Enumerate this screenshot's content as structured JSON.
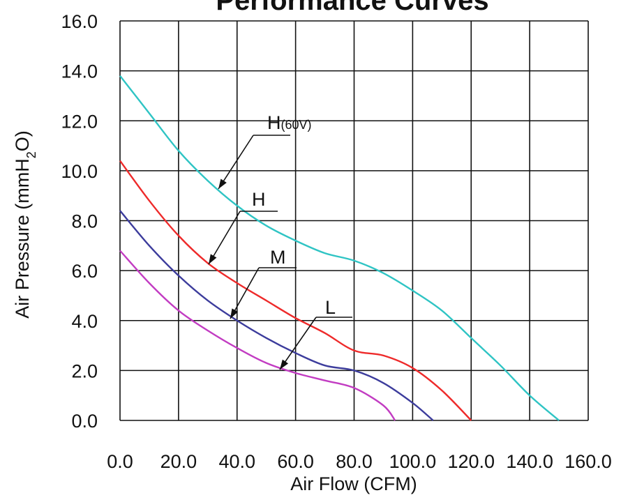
{
  "chart_data": {
    "type": "line",
    "title": "Performance Curves",
    "xlabel": "Air Flow (CFM)",
    "ylabel": "Air Pressure (mmH2O)",
    "xlim": [
      0,
      160
    ],
    "ylim": [
      0,
      16
    ],
    "x_ticks": [
      "0.0",
      "20.0",
      "40.0",
      "60.0",
      "80.0",
      "100.0",
      "120.0",
      "140.0",
      "160.0"
    ],
    "y_ticks": [
      "0.0",
      "2.0",
      "4.0",
      "6.0",
      "8.0",
      "10.0",
      "12.0",
      "14.0",
      "16.0"
    ],
    "grid": true,
    "legend": "none",
    "series": [
      {
        "name": "H(60V)",
        "callout": {
          "main": "H",
          "sub": "(60V)"
        },
        "color": "#2fc4c4",
        "points": [
          [
            0,
            13.8
          ],
          [
            10,
            12.3
          ],
          [
            20,
            10.8
          ],
          [
            30,
            9.6
          ],
          [
            40,
            8.6
          ],
          [
            50,
            7.8
          ],
          [
            60,
            7.2
          ],
          [
            70,
            6.7
          ],
          [
            80,
            6.4
          ],
          [
            90,
            5.9
          ],
          [
            100,
            5.2
          ],
          [
            110,
            4.4
          ],
          [
            120,
            3.3
          ],
          [
            130,
            2.2
          ],
          [
            140,
            1.0
          ],
          [
            150,
            0.0
          ]
        ]
      },
      {
        "name": "H",
        "callout": {
          "main": "H",
          "sub": ""
        },
        "color": "#ee2a2a",
        "points": [
          [
            0,
            10.4
          ],
          [
            10,
            8.8
          ],
          [
            20,
            7.4
          ],
          [
            30,
            6.3
          ],
          [
            40,
            5.5
          ],
          [
            50,
            4.8
          ],
          [
            60,
            4.1
          ],
          [
            70,
            3.5
          ],
          [
            80,
            2.8
          ],
          [
            90,
            2.6
          ],
          [
            100,
            2.1
          ],
          [
            110,
            1.2
          ],
          [
            120,
            0.0
          ]
        ]
      },
      {
        "name": "M",
        "callout": {
          "main": "M",
          "sub": ""
        },
        "color": "#3c3c9c",
        "points": [
          [
            0,
            8.4
          ],
          [
            10,
            7.0
          ],
          [
            20,
            5.8
          ],
          [
            30,
            4.8
          ],
          [
            40,
            4.0
          ],
          [
            50,
            3.3
          ],
          [
            60,
            2.7
          ],
          [
            70,
            2.2
          ],
          [
            80,
            2.0
          ],
          [
            90,
            1.5
          ],
          [
            100,
            0.7
          ],
          [
            107,
            0.0
          ]
        ]
      },
      {
        "name": "L",
        "callout": {
          "main": "L",
          "sub": ""
        },
        "color": "#c23cc2",
        "points": [
          [
            0,
            6.8
          ],
          [
            10,
            5.5
          ],
          [
            20,
            4.4
          ],
          [
            30,
            3.6
          ],
          [
            40,
            2.9
          ],
          [
            50,
            2.3
          ],
          [
            60,
            1.9
          ],
          [
            70,
            1.6
          ],
          [
            80,
            1.3
          ],
          [
            90,
            0.6
          ],
          [
            94,
            0.0
          ]
        ]
      }
    ]
  }
}
